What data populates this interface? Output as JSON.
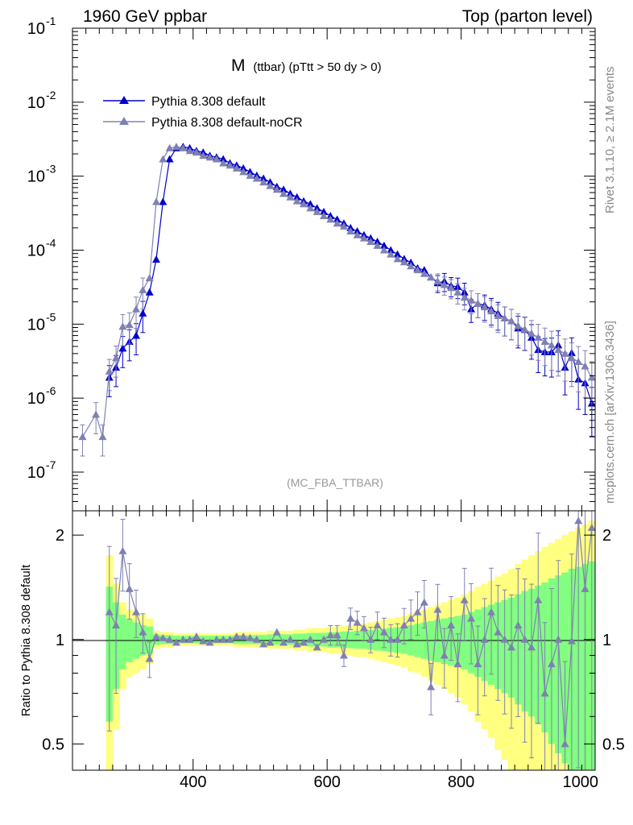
{
  "header": {
    "left": "1960 GeV ppbar",
    "right": "Top (parton level)"
  },
  "side_labels": {
    "rivet": "Rivet 3.1.10, ≥ 2.1M events",
    "mcplots": "mcplots.cern.ch [arXiv:1306.3436]"
  },
  "colors": {
    "default": "#0000cc",
    "noCR": "#8080b3",
    "band_yellow": "#ffff80",
    "band_green": "#80ff80"
  },
  "chart_data": [
    {
      "type": "line",
      "title": "M",
      "title_suffix": "(ttbar) (pTtt > 50 dy > 0)",
      "watermark": "(MC_FBA_TTBAR)",
      "ylabel": "",
      "xlim": [
        220,
        1000
      ],
      "ylim": [
        3e-08,
        0.1
      ],
      "log_y": true,
      "ytick_labels": [
        {
          "base": "10",
          "exp": "-1",
          "value": 0.1
        },
        {
          "base": "10",
          "exp": "-2",
          "value": 0.01
        },
        {
          "base": "10",
          "exp": "-3",
          "value": 0.001
        },
        {
          "base": "10",
          "exp": "-4",
          "value": 0.0001
        },
        {
          "base": "10",
          "exp": "-5",
          "value": 1e-05
        },
        {
          "base": "10",
          "exp": "-6",
          "value": 1e-06
        },
        {
          "base": "10",
          "exp": "-7",
          "value": 1e-07
        }
      ],
      "legend": {
        "placement": "top-left"
      },
      "series": [
        {
          "name": "Pythia 8.308 default",
          "x": [
            275,
            285,
            295,
            305,
            315,
            325,
            335,
            345,
            355,
            365,
            375,
            385,
            395,
            405,
            415,
            425,
            435,
            445,
            455,
            465,
            475,
            485,
            495,
            505,
            515,
            525,
            535,
            545,
            555,
            565,
            575,
            585,
            595,
            605,
            615,
            625,
            635,
            645,
            655,
            665,
            675,
            685,
            695,
            705,
            715,
            725,
            735,
            745,
            755,
            765,
            775,
            785,
            795,
            805,
            815,
            825,
            835,
            845,
            855,
            865,
            875,
            885,
            895,
            905,
            915,
            925,
            935,
            945,
            955,
            965,
            975,
            985,
            995
          ],
          "y": [
            1.9e-06,
            2.6e-06,
            4.7e-06,
            5.8e-06,
            7e-06,
            1.4e-05,
            2.7e-05,
            7.5e-05,
            0.00045,
            0.0017,
            0.0024,
            0.0025,
            0.0024,
            0.0022,
            0.0021,
            0.0019,
            0.0018,
            0.0017,
            0.0015,
            0.0014,
            0.00128,
            0.00114,
            0.00102,
            0.00093,
            0.00083,
            0.00072,
            0.00066,
            0.00058,
            0.00052,
            0.00046,
            0.00042,
            0.00037,
            0.00033,
            0.00029,
            0.00026,
            0.00023,
            0.0002,
            0.00018,
            0.00016,
            0.000145,
            0.00013,
            0.000115,
            0.0001,
            8.8e-05,
            7.6e-05,
            6.8e-05,
            5.7e-05,
            5.4e-05,
            4.3e-05,
            3.6e-05,
            3.8e-05,
            3.3e-05,
            3.2e-05,
            2.7e-05,
            1.6e-05,
            1.9e-05,
            1.8e-05,
            1.6e-05,
            1.4e-05,
            1.2e-05,
            1.1e-05,
            8.8e-06,
            8.4e-06,
            6.6e-06,
            4.5e-06,
            4.2e-06,
            4.2e-06,
            5.2e-06,
            2.6e-06,
            4.1e-06,
            1.8e-06,
            1.6e-06,
            8.5e-07
          ]
        },
        {
          "name": "Pythia 8.308 default-noCR",
          "x": [
            235,
            255,
            265,
            275,
            285,
            295,
            305,
            315,
            325,
            335,
            345,
            355,
            365,
            375,
            385,
            395,
            405,
            415,
            425,
            435,
            445,
            455,
            465,
            475,
            485,
            495,
            505,
            515,
            525,
            535,
            545,
            555,
            565,
            575,
            585,
            595,
            605,
            615,
            625,
            635,
            645,
            655,
            665,
            675,
            685,
            695,
            705,
            715,
            725,
            735,
            745,
            755,
            765,
            775,
            785,
            795,
            805,
            815,
            825,
            835,
            845,
            855,
            865,
            875,
            885,
            895,
            905,
            915,
            925,
            935,
            945,
            955,
            965,
            975,
            985,
            995
          ],
          "y": [
            3e-07,
            6e-07,
            3e-07,
            2.3e-06,
            3.5e-06,
            9.3e-06,
            9.8e-06,
            1.6e-05,
            2.9e-05,
            4.2e-05,
            0.00045,
            0.0017,
            0.0024,
            0.0025,
            0.0024,
            0.0022,
            0.0021,
            0.0019,
            0.0018,
            0.0017,
            0.0015,
            0.0014,
            0.00128,
            0.00114,
            0.00102,
            0.00093,
            0.00083,
            0.00074,
            0.00066,
            0.00058,
            0.00052,
            0.00046,
            0.00042,
            0.00037,
            0.00033,
            0.00029,
            0.00026,
            0.00023,
            0.00021,
            0.00018,
            0.00016,
            0.000145,
            0.00013,
            0.000115,
            0.0001,
            8.8e-05,
            7.6e-05,
            6.9e-05,
            6.1e-05,
            5.4e-05,
            4.8e-05,
            4.3e-05,
            3.8e-05,
            3.4e-05,
            3.1e-05,
            2.7e-05,
            2.3e-05,
            2.1e-05,
            1.9e-05,
            1.7e-05,
            1.5e-05,
            1.3e-05,
            1.2e-05,
            1.1e-05,
            9.5e-06,
            8.5e-06,
            7.5e-06,
            6.6e-06,
            5.8e-06,
            5.2e-06,
            4.5e-06,
            4e-06,
            3.5e-06,
            3.1e-06,
            2.7e-06,
            1.9e-06
          ]
        }
      ]
    },
    {
      "type": "line",
      "ylabel": "Ratio to Pythia 8.308 default",
      "xlabel": "",
      "xlim": [
        220,
        1000
      ],
      "ylim": [
        0.42,
        2.35
      ],
      "log_y": true,
      "ytick_labels": [
        "0.5",
        "1",
        "2"
      ],
      "xtick_labels": [
        "400",
        "600",
        "800",
        "1000"
      ],
      "series": [
        {
          "name": "Pythia 8.308 default-noCR",
          "x": [
            275,
            285,
            295,
            305,
            315,
            325,
            335,
            345,
            355,
            365,
            375,
            385,
            395,
            405,
            415,
            425,
            435,
            445,
            455,
            465,
            475,
            485,
            495,
            505,
            515,
            525,
            535,
            545,
            555,
            565,
            575,
            585,
            595,
            605,
            615,
            625,
            635,
            645,
            655,
            665,
            675,
            685,
            695,
            705,
            715,
            725,
            735,
            745,
            755,
            765,
            775,
            785,
            795,
            805,
            815,
            825,
            835,
            845,
            855,
            865,
            875,
            885,
            895,
            905,
            915,
            925,
            935,
            945,
            955,
            965,
            975,
            985,
            995
          ],
          "y": [
            1.2,
            1.1,
            1.8,
            1.4,
            1.2,
            1.05,
            0.88,
            1.02,
            1.01,
            1.0,
            0.98,
            1.0,
            1.0,
            1.02,
            0.99,
            0.98,
            1.0,
            1.0,
            1.0,
            1.02,
            1.02,
            1.01,
            1.0,
            0.97,
            0.98,
            1.05,
            0.98,
            1.0,
            0.97,
            0.98,
            1.0,
            0.95,
            1.0,
            1.03,
            1.03,
            0.9,
            1.15,
            1.12,
            1.08,
            1.0,
            1.1,
            1.05,
            1.0,
            1.0,
            1.1,
            1.15,
            1.2,
            1.28,
            0.73,
            1.22,
            0.9,
            1.1,
            0.85,
            1.3,
            1.15,
            0.85,
            1.0,
            1.2,
            1.05,
            1.0,
            0.95,
            1.1,
            1.0,
            0.95,
            1.3,
            0.7,
            0.85,
            1.0,
            0.5,
            0.99,
            2.2,
            1.4,
            2.1
          ]
        }
      ],
      "band_yellow": [
        0.75,
        0.45,
        0.28,
        0.22,
        0.2,
        0.18,
        0.15,
        0.06,
        0.05,
        0.05,
        0.04,
        0.04,
        0.04,
        0.04,
        0.04,
        0.04,
        0.04,
        0.04,
        0.04,
        0.05,
        0.05,
        0.05,
        0.05,
        0.05,
        0.06,
        0.06,
        0.06,
        0.06,
        0.07,
        0.07,
        0.08,
        0.08,
        0.08,
        0.09,
        0.09,
        0.1,
        0.1,
        0.11,
        0.11,
        0.12,
        0.13,
        0.14,
        0.15,
        0.16,
        0.17,
        0.19,
        0.2,
        0.22,
        0.24,
        0.26,
        0.28,
        0.3,
        0.32,
        0.35,
        0.38,
        0.42,
        0.45,
        0.48,
        0.52,
        0.55,
        0.6,
        0.65,
        0.7,
        0.75,
        0.8,
        0.85,
        0.9,
        0.95,
        1.0,
        1.05,
        1.1,
        1.15,
        1.2
      ],
      "band_green": [
        0.42,
        0.28,
        0.18,
        0.14,
        0.12,
        0.1,
        0.09,
        0.035,
        0.03,
        0.03,
        0.025,
        0.025,
        0.025,
        0.025,
        0.025,
        0.025,
        0.025,
        0.025,
        0.025,
        0.03,
        0.03,
        0.03,
        0.03,
        0.03,
        0.035,
        0.035,
        0.035,
        0.035,
        0.04,
        0.04,
        0.045,
        0.045,
        0.045,
        0.05,
        0.05,
        0.055,
        0.055,
        0.06,
        0.06,
        0.065,
        0.07,
        0.075,
        0.08,
        0.085,
        0.09,
        0.1,
        0.11,
        0.12,
        0.13,
        0.14,
        0.15,
        0.16,
        0.17,
        0.18,
        0.2,
        0.22,
        0.24,
        0.26,
        0.28,
        0.3,
        0.32,
        0.35,
        0.38,
        0.4,
        0.43,
        0.46,
        0.5,
        0.53,
        0.56,
        0.6,
        0.62,
        0.65,
        0.68
      ]
    }
  ]
}
